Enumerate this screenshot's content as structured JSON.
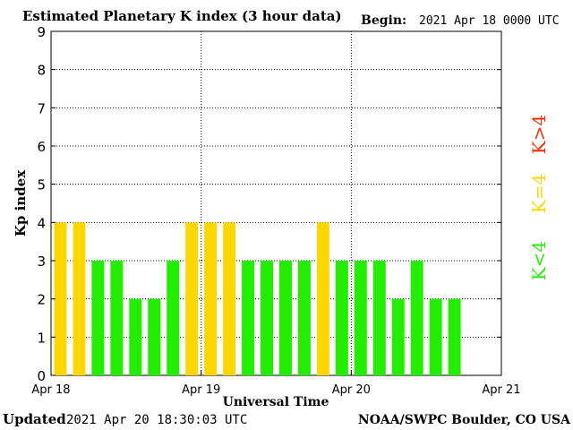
{
  "header": {
    "title": "Estimated Planetary K index (3 hour data)",
    "begin_label": "Begin:",
    "begin_value": "2021 Apr 18 0000 UTC"
  },
  "footer": {
    "updated_label": "Updated",
    "updated_value": "2021 Apr 20 18:30:03 UTC",
    "credit": "NOAA/SWPC Boulder, CO USA"
  },
  "legend": {
    "gt4": "K>4",
    "eq4": "K=4",
    "lt4": "K<4"
  },
  "colors": {
    "lt4": "#22ee00",
    "eq4": "#ffd700",
    "gt4": "#ff2a00",
    "grid": "#000000",
    "axis": "#000000"
  },
  "chart_data": {
    "type": "bar",
    "xlabel": "Universal Time",
    "ylabel": "Kp index",
    "ylim": [
      0,
      9
    ],
    "yticks": [
      "0",
      "1",
      "2",
      "3",
      "4",
      "5",
      "6",
      "7",
      "8",
      "9"
    ],
    "xtick_labels": [
      "Apr 18",
      "Apr 19",
      "Apr 20",
      "Apr 21"
    ],
    "interval_hours": 3,
    "values": [
      4,
      4,
      3,
      3,
      2,
      2,
      3,
      4,
      4,
      4,
      3,
      3,
      3,
      3,
      4,
      3,
      3,
      3,
      2,
      3,
      2,
      2
    ],
    "grid": true
  }
}
